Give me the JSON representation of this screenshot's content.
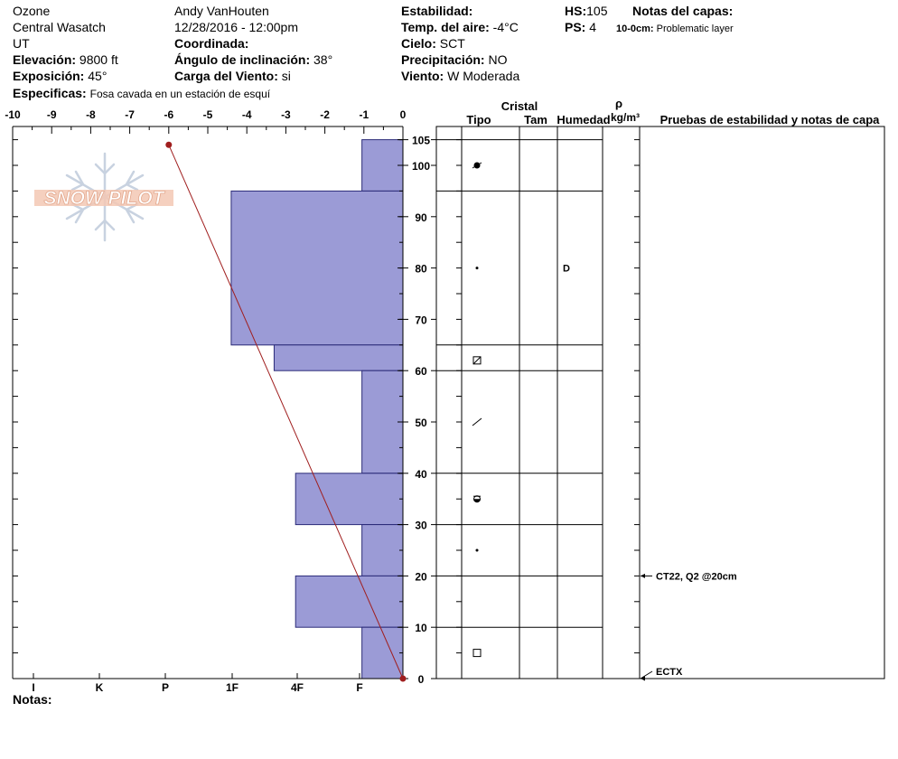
{
  "header": {
    "location": "Ozone",
    "range": "Central Wasatch",
    "state": "UT",
    "elevation_label": "Elevación:",
    "elevation_value": "9800 ft",
    "aspect_label": "Exposición:",
    "aspect_value": "45°",
    "specifics_label": "Especificas:",
    "specifics_value": "Fosa cavada en un estación de esquí",
    "observer": "Andy VanHouten",
    "datetime": "12/28/2016 - 12:00pm",
    "coord_label": "Coordinada:",
    "slope_label": "Ángulo de inclinación:",
    "slope_value": "38°",
    "wind_load_label": "Carga del Viento:",
    "wind_load_value": "si",
    "stability_label": "Estabilidad:",
    "air_temp_label": "Temp. del aire:",
    "air_temp_value": "-4°C",
    "sky_label": "Cielo:",
    "sky_value": "SCT",
    "precip_label": "Precipitación:",
    "precip_value": "NO",
    "wind_label": "Viento:",
    "wind_value": "W Moderada",
    "hs_label": "HS:",
    "hs_value": "105",
    "ps_label": "PS:",
    "ps_value": "4",
    "layer_notes_label": "Notas del capas:",
    "layer_note_range": "10-0cm:",
    "layer_note_text": "Problematic layer"
  },
  "logo_text": "SNOW PILOT",
  "notes_label": "Notas:",
  "table_headers": {
    "crystal": "Cristal",
    "type": "Tipo",
    "size": "Tam",
    "moisture": "Humedad",
    "rho": "ρ",
    "density_unit": "kg/m³",
    "tests": "Pruebas de estabilidad y notas de capa"
  },
  "layer_moisture": [
    {
      "depth": 80,
      "text": "D"
    }
  ],
  "stability_tests": [
    {
      "depth": 20,
      "text": "CT22, Q2 @20cm"
    },
    {
      "depth": 0,
      "text": "ECTX"
    }
  ],
  "colors": {
    "hardness_fill": "#9b9bd6",
    "temp_line": "#a01e1e",
    "logo": "#f0b9a0"
  },
  "chart_data": {
    "type": "bar",
    "orientation": "horizontal",
    "temperature_axis": {
      "ticks": [
        "-10",
        "-9",
        "-8",
        "-7",
        "-6",
        "-5",
        "-4",
        "-3",
        "-2",
        "-1",
        "0"
      ],
      "range": [
        -10,
        0
      ]
    },
    "depth_axis": {
      "ticks": [
        "0",
        "10",
        "20",
        "30",
        "40",
        "50",
        "60",
        "70",
        "80",
        "90",
        "100",
        "105"
      ],
      "range": [
        0,
        107
      ]
    },
    "hardness_axis": {
      "ticks": [
        "I",
        "K",
        "P",
        "1F",
        "4F",
        "F"
      ]
    },
    "hardness_layers": [
      {
        "top": 105,
        "bottom": 95,
        "hardness": 1.05
      },
      {
        "top": 95,
        "bottom": 65,
        "hardness": 4.4
      },
      {
        "top": 65,
        "bottom": 60,
        "hardness": 3.3
      },
      {
        "top": 60,
        "bottom": 40,
        "hardness": 1.05
      },
      {
        "top": 40,
        "bottom": 30,
        "hardness": 2.75
      },
      {
        "top": 30,
        "bottom": 20,
        "hardness": 1.05
      },
      {
        "top": 20,
        "bottom": 10,
        "hardness": 2.75
      },
      {
        "top": 10,
        "bottom": 0,
        "hardness": 1.05
      }
    ],
    "layer_boundaries": [
      105,
      95,
      65,
      60,
      40,
      30,
      20,
      10,
      0
    ],
    "temperature_profile": [
      {
        "depth": 104,
        "temp": -6
      },
      {
        "depth": 0,
        "temp": 0
      }
    ],
    "grain_types": [
      {
        "depth": 100,
        "symbol": "filled-circle-tail"
      },
      {
        "depth": 80,
        "symbol": "dot"
      },
      {
        "depth": 62,
        "symbol": "crossed-square"
      },
      {
        "depth": 50,
        "symbol": "slash"
      },
      {
        "depth": 35,
        "symbol": "half-filled-circle"
      },
      {
        "depth": 25,
        "symbol": "dot"
      },
      {
        "depth": 5,
        "symbol": "square"
      }
    ]
  }
}
